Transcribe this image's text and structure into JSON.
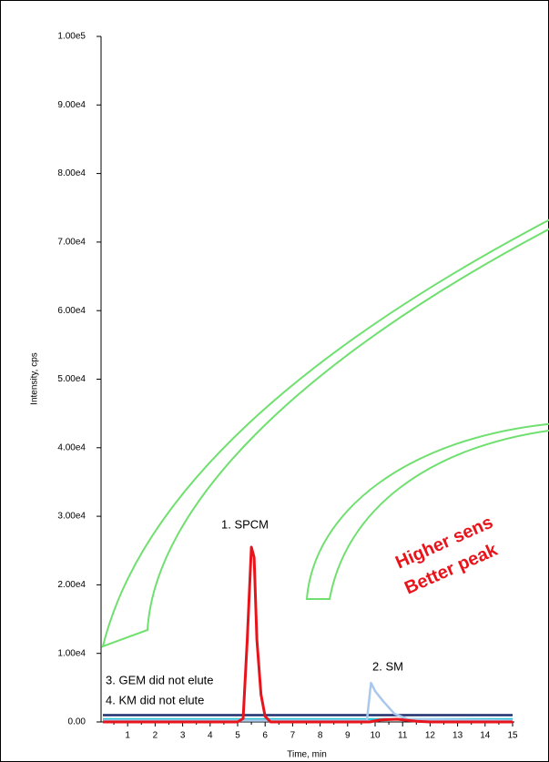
{
  "chart_data": {
    "type": "line",
    "ylabel": "Intensity, cps",
    "xlabel": "Time, min",
    "xlim": [
      0,
      15
    ],
    "xticks": [
      1,
      2,
      3,
      4,
      5,
      6,
      7,
      8,
      9,
      10,
      11,
      12,
      13,
      14,
      15
    ],
    "ylim": [
      0,
      100000
    ],
    "yticks": [
      {
        "value": 0,
        "label": "0.00"
      },
      {
        "value": 10000,
        "label": "1.00e4"
      },
      {
        "value": 20000,
        "label": "2.00e4"
      },
      {
        "value": 30000,
        "label": "3.00e4"
      },
      {
        "value": 40000,
        "label": "4.00e4"
      },
      {
        "value": 50000,
        "label": "5.00e4"
      },
      {
        "value": 60000,
        "label": "6.00e4"
      },
      {
        "value": 70000,
        "label": "7.00e4"
      },
      {
        "value": 80000,
        "label": "8.00e4"
      },
      {
        "value": 90000,
        "label": "9.00e4"
      },
      {
        "value": 100000,
        "label": "1.00e5"
      }
    ],
    "series": [
      {
        "color": "#1f2f6e",
        "x": [
          0.1,
          15
        ],
        "values": [
          1000,
          1000
        ]
      },
      {
        "color": "#2ec4d6",
        "x": [
          0.1,
          15
        ],
        "values": [
          400,
          400
        ]
      },
      {
        "color": "#a9c8ec",
        "x": [
          0.1,
          9.7,
          9.85,
          10.0,
          10.3,
          10.7,
          11.2,
          15
        ],
        "values": [
          200,
          200,
          5700,
          4500,
          3000,
          1200,
          400,
          200
        ]
      },
      {
        "color": "#e8141b",
        "x": [
          0.1,
          5.0,
          5.2,
          5.35,
          5.5,
          5.6,
          5.7,
          5.85,
          6.0,
          6.2,
          9.8,
          10.2,
          10.8,
          11.5,
          12.0,
          15
        ],
        "values": [
          0,
          0,
          500,
          12000,
          25500,
          24000,
          12000,
          4000,
          800,
          0,
          0,
          300,
          400,
          100,
          0,
          0
        ]
      }
    ],
    "annotations": [
      "1. SPCM",
      "2. SM",
      "3. GEM did not elute",
      "4. KM did not elute",
      "Higher sens",
      "Better peak"
    ]
  }
}
